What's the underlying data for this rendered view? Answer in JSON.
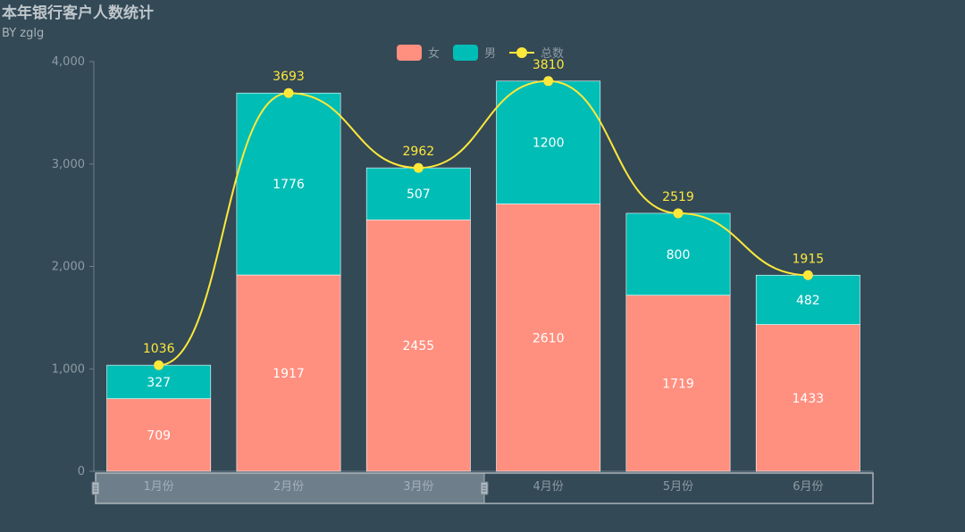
{
  "chart_data": {
    "type": "bar",
    "title": "本年银行客户人数统计",
    "subtitle": "BY zglg",
    "categories": [
      "1月份",
      "2月份",
      "3月份",
      "4月份",
      "5月份",
      "6月份"
    ],
    "series": [
      {
        "name": "女",
        "type": "bar",
        "stack": "total",
        "color": "#ff8f7f",
        "values": [
          709,
          1917,
          2455,
          2610,
          1719,
          1433
        ]
      },
      {
        "name": "男",
        "type": "bar",
        "stack": "total",
        "color": "#00bdb6",
        "values": [
          327,
          1776,
          507,
          1200,
          800,
          482
        ]
      },
      {
        "name": "总数",
        "type": "line",
        "color": "#ffe83a",
        "values": [
          1036,
          3693,
          2962,
          3810,
          2519,
          1915
        ]
      }
    ],
    "ylim": [
      0,
      4000
    ],
    "yticks": [
      0,
      1000,
      2000,
      3000,
      4000
    ],
    "ytick_labels": [
      "0",
      "1,000",
      "2,000",
      "3,000",
      "4,000"
    ],
    "legend_position": "top-center",
    "datazoom": {
      "start_fraction": 0,
      "end_fraction": 0.5
    }
  }
}
